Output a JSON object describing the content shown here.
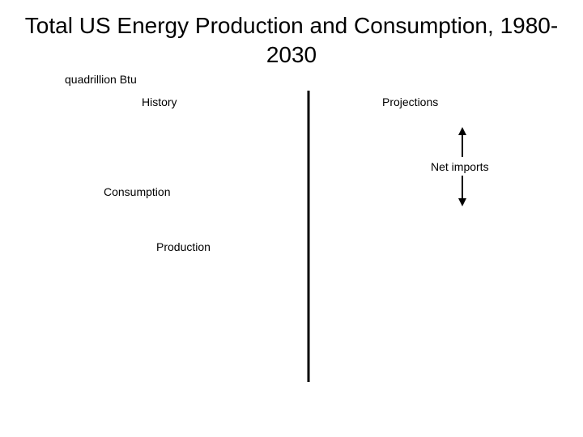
{
  "chart_data": {
    "type": "line",
    "title": "Total US Energy Production and Consumption, 1980-2030",
    "ylabel": "quadrillion Btu",
    "annotations": {
      "history": "History",
      "projections": "Projections",
      "net_imports": "Net imports",
      "consumption": "Consumption",
      "production": "Production"
    },
    "series": []
  },
  "colors": {
    "text": "#000000",
    "divider": "#000000",
    "background": "#ffffff"
  }
}
